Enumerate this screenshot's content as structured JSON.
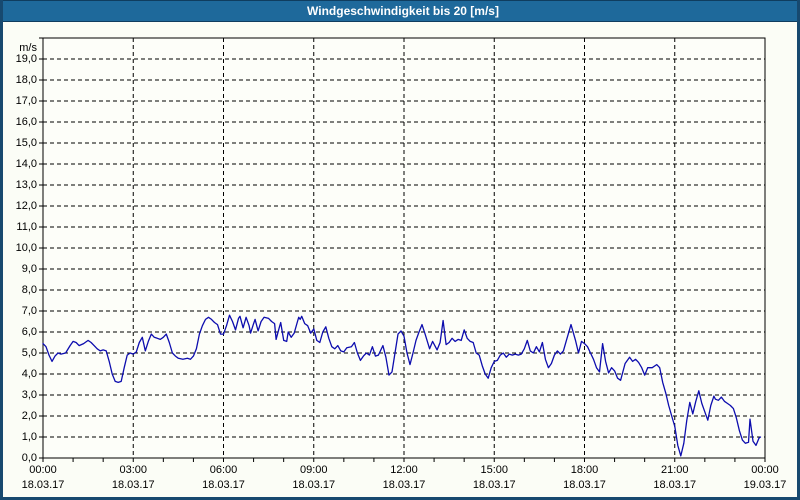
{
  "window": {
    "title": "Windgeschwindigkeit bis 20 [m/s]"
  },
  "colors": {
    "titlebar_bg": "#1E699B",
    "titlebar_text": "#FFFFFF",
    "titlebar_edge": "#0F3D5F",
    "frame_border": "#17496F",
    "content_bg": "#FBFDF6",
    "plot_bg": "#FDFEF9",
    "grid": "#000000",
    "axis": "#000000",
    "text": "#000000",
    "line": "#0D0DAE"
  },
  "chart_data": {
    "type": "line",
    "title": "Windgeschwindigkeit bis 20 [m/s]",
    "unit_label": "m/s",
    "grid": "dashed",
    "legend": "none",
    "ylim": [
      0,
      20
    ],
    "xlim_hours": [
      0,
      24
    ],
    "y_tick_step": 1,
    "y_tick_labels": [
      "19,0",
      "18,0",
      "17,0",
      "16,0",
      "15,0",
      "14,0",
      "13,0",
      "12,0",
      "11,0",
      "10,0",
      "9,0",
      "8,0",
      "7,0",
      "6,0",
      "5,0",
      "4,0",
      "3,0",
      "2,0",
      "1,0",
      "0,0"
    ],
    "x_minor_tick_hours": 1,
    "x_grid_hours": [
      3,
      6,
      9,
      12,
      15,
      18,
      21
    ],
    "x_ticks": [
      {
        "hour": 0,
        "time": "00:00",
        "date": "18.03.17"
      },
      {
        "hour": 3,
        "time": "03:00",
        "date": "18.03.17"
      },
      {
        "hour": 6,
        "time": "06:00",
        "date": "18.03.17"
      },
      {
        "hour": 9,
        "time": "09:00",
        "date": "18.03.17"
      },
      {
        "hour": 12,
        "time": "12:00",
        "date": "18.03.17"
      },
      {
        "hour": 15,
        "time": "15:00",
        "date": "18.03.17"
      },
      {
        "hour": 18,
        "time": "18:00",
        "date": "18.03.17"
      },
      {
        "hour": 21,
        "time": "21:00",
        "date": "18.03.17"
      },
      {
        "hour": 24,
        "time": "00:00",
        "date": "19.03.17"
      }
    ],
    "series": [
      {
        "name": "Windgeschwindigkeit",
        "color": "#0D0DAE",
        "x_hours": [
          0,
          0.1,
          0.2,
          0.3,
          0.4,
          0.5,
          0.6,
          0.75,
          0.9,
          1,
          1.1,
          1.2,
          1.35,
          1.5,
          1.6,
          1.7,
          1.8,
          1.9,
          2,
          2.1,
          2.2,
          2.3,
          2.4,
          2.5,
          2.6,
          2.7,
          2.8,
          2.9,
          3,
          3.1,
          3.2,
          3.3,
          3.4,
          3.5,
          3.6,
          3.7,
          3.8,
          3.9,
          4,
          4.1,
          4.2,
          4.3,
          4.4,
          4.5,
          4.65,
          4.8,
          4.9,
          5,
          5.1,
          5.2,
          5.3,
          5.4,
          5.5,
          5.6,
          5.7,
          5.8,
          5.9,
          6,
          6.1,
          6.2,
          6.3,
          6.4,
          6.5,
          6.55,
          6.65,
          6.75,
          6.85,
          6.9,
          7,
          7.05,
          7.15,
          7.25,
          7.35,
          7.5,
          7.6,
          7.7,
          7.75,
          7.85,
          7.9,
          8,
          8.1,
          8.15,
          8.25,
          8.35,
          8.45,
          8.5,
          8.55,
          8.6,
          8.7,
          8.8,
          8.9,
          9,
          9.1,
          9.2,
          9.3,
          9.4,
          9.5,
          9.6,
          9.7,
          9.8,
          9.9,
          10,
          10.1,
          10.25,
          10.35,
          10.45,
          10.55,
          10.65,
          10.75,
          10.85,
          10.95,
          11.05,
          11.15,
          11.3,
          11.4,
          11.5,
          11.6,
          11.7,
          11.8,
          11.9,
          12,
          12.1,
          12.2,
          12.3,
          12.4,
          12.5,
          12.6,
          12.7,
          12.85,
          12.95,
          13.1,
          13.2,
          13.3,
          13.4,
          13.5,
          13.6,
          13.7,
          13.8,
          13.9,
          14,
          14.1,
          14.2,
          14.3,
          14.4,
          14.5,
          14.6,
          14.7,
          14.8,
          14.9,
          15,
          15.1,
          15.2,
          15.3,
          15.4,
          15.5,
          15.6,
          15.7,
          15.8,
          15.9,
          16,
          16.1,
          16.2,
          16.3,
          16.4,
          16.5,
          16.6,
          16.7,
          16.8,
          16.9,
          17,
          17.1,
          17.2,
          17.3,
          17.4,
          17.55,
          17.7,
          17.8,
          17.9,
          18,
          18.1,
          18.2,
          18.3,
          18.4,
          18.5,
          18.6,
          18.7,
          18.8,
          18.9,
          19,
          19.1,
          19.2,
          19.35,
          19.5,
          19.6,
          19.7,
          19.8,
          19.9,
          20,
          20.1,
          20.25,
          20.4,
          20.5,
          20.6,
          20.7,
          20.8,
          20.9,
          21,
          21.1,
          21.2,
          21.3,
          21.4,
          21.5,
          21.6,
          21.7,
          21.8,
          21.9,
          22,
          22.1,
          22.2,
          22.3,
          22.35,
          22.45,
          22.55,
          22.65,
          22.75,
          22.85,
          22.95,
          23.05,
          23.15,
          23.25,
          23.35,
          23.45,
          23.5,
          23.6,
          23.7,
          23.8,
          23.85
        ],
        "values": [
          5.45,
          5.3,
          4.9,
          4.6,
          4.85,
          5,
          4.95,
          5,
          5.35,
          5.55,
          5.5,
          5.35,
          5.45,
          5.6,
          5.5,
          5.35,
          5.2,
          5.1,
          5.15,
          5.1,
          4.6,
          4,
          3.65,
          3.6,
          3.65,
          4.3,
          4.9,
          5,
          4.95,
          5.05,
          5.5,
          5.75,
          5.1,
          5.55,
          5.9,
          5.75,
          5.7,
          5.65,
          5.75,
          5.9,
          5.5,
          5,
          4.85,
          4.75,
          4.7,
          4.75,
          4.7,
          4.85,
          5.2,
          5.9,
          6.3,
          6.6,
          6.7,
          6.6,
          6.45,
          6.35,
          5.9,
          5.9,
          6.3,
          6.8,
          6.5,
          6.1,
          6.65,
          6.75,
          6.2,
          6.7,
          6.3,
          5.95,
          6.4,
          6.6,
          6.05,
          6.5,
          6.7,
          6.65,
          6.5,
          6.4,
          5.65,
          6.2,
          6.45,
          5.6,
          5.55,
          6,
          5.75,
          5.95,
          6.45,
          6.7,
          6.6,
          6.75,
          6.4,
          6.3,
          5.95,
          6.15,
          5.6,
          5.5,
          6,
          6.25,
          5.7,
          5.3,
          5.2,
          5.35,
          5.1,
          5.05,
          5.25,
          5.3,
          5.5,
          5,
          4.65,
          4.85,
          5,
          4.9,
          5.3,
          4.85,
          4.9,
          5.35,
          4.8,
          3.95,
          4.1,
          5,
          5.9,
          6.05,
          5.8,
          5,
          4.45,
          5,
          5.6,
          6,
          6.35,
          5.9,
          5.2,
          5.55,
          5.15,
          5.5,
          6.55,
          5.4,
          5.5,
          5.7,
          5.55,
          5.65,
          5.6,
          6.1,
          5.7,
          5.55,
          5.5,
          5,
          4.9,
          4.4,
          4,
          3.8,
          4.3,
          4.6,
          4.65,
          4.9,
          5,
          4.8,
          4.95,
          4.9,
          4.95,
          4.9,
          4.95,
          5.2,
          5.6,
          5.1,
          5,
          5.3,
          5.05,
          5.5,
          4.7,
          4.3,
          4.5,
          4.9,
          5.1,
          4.95,
          5.1,
          5.6,
          6.35,
          5.6,
          5,
          5.55,
          5.45,
          5.3,
          5,
          4.7,
          4.3,
          4.1,
          5.45,
          4.6,
          4.05,
          4.3,
          4.15,
          3.8,
          3.7,
          4.5,
          4.8,
          4.6,
          4.7,
          4.55,
          4.3,
          3.95,
          4.3,
          4.3,
          4.45,
          4.3,
          3.6,
          3.1,
          2.5,
          2,
          1.5,
          0.6,
          0.1,
          0.7,
          1.8,
          2.65,
          2.1,
          2.7,
          3.2,
          2.6,
          2.2,
          1.8,
          2.5,
          2.95,
          2.8,
          2.75,
          2.9,
          2.7,
          2.6,
          2.5,
          2.35,
          1.9,
          1.3,
          0.85,
          0.7,
          0.75,
          1.85,
          0.8,
          0.6,
          0.95,
          1
        ]
      }
    ]
  }
}
